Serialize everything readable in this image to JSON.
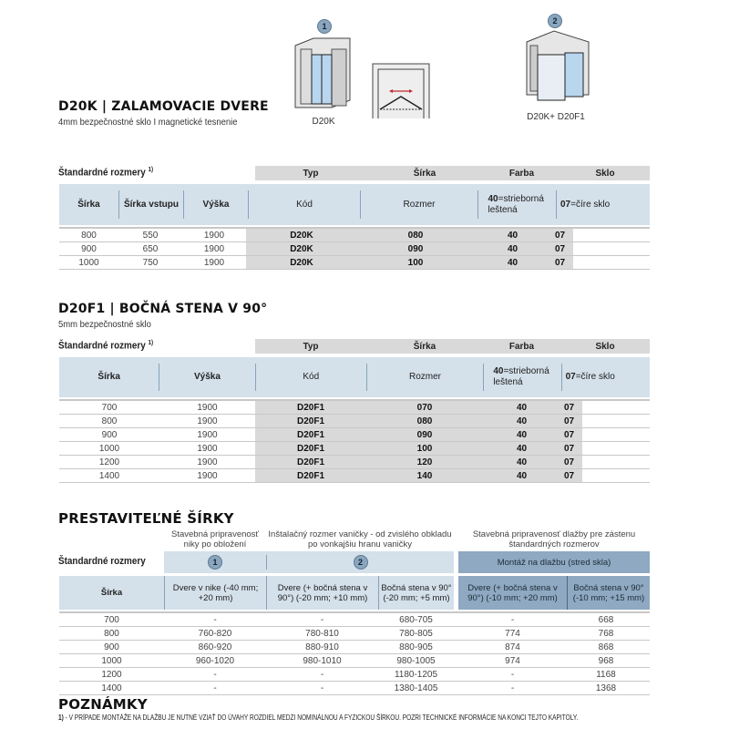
{
  "images": [
    {
      "badge": "1",
      "caption": "D20K"
    },
    {
      "badge": "2",
      "caption": "D20K+ D20F1"
    }
  ],
  "section1": {
    "title": "D20K | ZALAMOVACIE DVERE",
    "subtitle": "4mm bezpečnostné sklo I magnetické tesnenie",
    "std_label": "Štandardné rozmery",
    "std_sup": "1)",
    "group_headers": [
      "Typ",
      "Šírka",
      "Farba",
      "Sklo"
    ],
    "col_headers": [
      "Šírka",
      "Šírka vstupu",
      "Výška",
      "Kód",
      "Rozmer"
    ],
    "farba_code": "40",
    "farba_text": "=strieborná leštená",
    "sklo_code": "07",
    "sklo_text": "=číre sklo",
    "rows": [
      [
        "800",
        "550",
        "1900",
        "D20K",
        "080",
        "40",
        "07"
      ],
      [
        "900",
        "650",
        "1900",
        "D20K",
        "090",
        "40",
        "07"
      ],
      [
        "1000",
        "750",
        "1900",
        "D20K",
        "100",
        "40",
        "07"
      ]
    ]
  },
  "section2": {
    "title": "D20F1 | BOČNÁ STENA V 90°",
    "subtitle": "5mm bezpečnostné sklo",
    "std_label": "Štandardné rozmery",
    "std_sup": "1)",
    "group_headers": [
      "Typ",
      "Šírka",
      "Farba",
      "Sklo"
    ],
    "col_headers": [
      "Šírka",
      "Výška",
      "Kód",
      "Rozmer"
    ],
    "farba_code": "40",
    "farba_text": "=strieborná leštená",
    "sklo_code": "07",
    "sklo_text": "=číre sklo",
    "rows": [
      [
        "700",
        "1900",
        "D20F1",
        "070",
        "40",
        "07"
      ],
      [
        "800",
        "1900",
        "D20F1",
        "080",
        "40",
        "07"
      ],
      [
        "900",
        "1900",
        "D20F1",
        "090",
        "40",
        "07"
      ],
      [
        "1000",
        "1900",
        "D20F1",
        "100",
        "40",
        "07"
      ],
      [
        "1200",
        "1900",
        "D20F1",
        "120",
        "40",
        "07"
      ],
      [
        "1400",
        "1900",
        "D20F1",
        "140",
        "40",
        "07"
      ]
    ]
  },
  "section3": {
    "title": "PRESTAVITEĽNÉ ŠÍRKY",
    "group_notes": [
      "Stavebná pripravenosť niky po obložení",
      "Inštalačný rozmer vaničky - od zvislého obkladu po vonkajšiu hranu vaničky",
      "Stavebná pripravenosť dlažby pre zástenu štandardných rozmerov"
    ],
    "std_label": "Štandardné rozmery",
    "badges": [
      "1",
      "2"
    ],
    "tile_label": "Montáž na dlažbu (stred skla)",
    "col_headers": [
      "Šírka",
      "Dvere v nike (-40 mm; +20 mm)",
      "Dvere (+ bočná stena v 90°) (-20 mm; +10 mm)",
      "Bočná stena v 90° (-20 mm; +5 mm)",
      "Dvere (+ bočná stena v 90°) (-10 mm; +20 mm)",
      "Bočná stena v 90° (-10 mm; +15 mm)"
    ],
    "rows": [
      [
        "700",
        "-",
        "-",
        "680-705",
        "-",
        "668"
      ],
      [
        "800",
        "760-820",
        "780-810",
        "780-805",
        "774",
        "768"
      ],
      [
        "900",
        "860-920",
        "880-910",
        "880-905",
        "874",
        "868"
      ],
      [
        "1000",
        "960-1020",
        "980-1010",
        "980-1005",
        "974",
        "968"
      ],
      [
        "1200",
        "-",
        "-",
        "1180-1205",
        "-",
        "1168"
      ],
      [
        "1400",
        "-",
        "-",
        "1380-1405",
        "-",
        "1368"
      ]
    ]
  },
  "notes": {
    "title": "POZNÁMKY",
    "items": [
      {
        "num": "1)",
        "text": " - V PRÍPADE MONTÁŽE NA DLAŽBU JE NUTNÉ VZIAŤ DO ÚVAHY ROZDIEL MEDZI NOMINÁLNOU A FYZICKOU ŠÍRKOU. POZRI TECHNICKÉ INFORMÁCIE NA KONCI TEJTO KAPITOLY."
      }
    ]
  },
  "colors": {
    "header_blue": "#d4e0ea",
    "tile_blue": "#8ea9c1",
    "gray": "#d9d9d9",
    "badge": "#8aa6bf",
    "arrow": "#c0282d"
  }
}
